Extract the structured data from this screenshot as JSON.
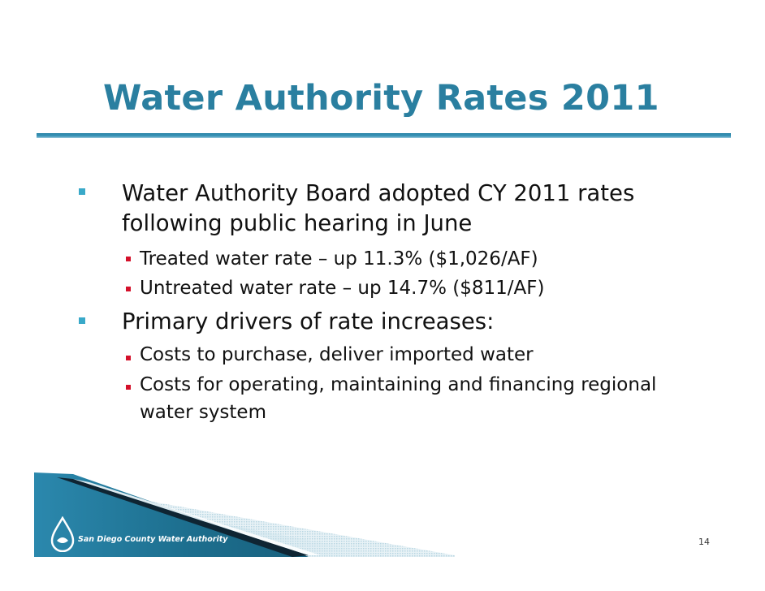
{
  "slide": {
    "title": "Water Authority Rates 2011",
    "bullets": [
      {
        "lines": [
          "Water Authority Board adopted CY 2011 rates",
          "following public hearing in June"
        ],
        "sub": [
          {
            "lines": [
              "Treated water rate – up 11.3%  ($1,026/AF)"
            ]
          },
          {
            "lines": [
              "Untreated water rate – up 14.7% ($811/AF)"
            ]
          }
        ]
      },
      {
        "lines": [
          "Primary drivers of rate increases:"
        ],
        "sub": [
          {
            "lines": [
              "Costs to purchase, deliver imported water"
            ]
          },
          {
            "lines": [
              "Costs for operating, maintaining and financing regional",
              "water system"
            ]
          }
        ]
      }
    ],
    "footer": {
      "logo_text": "San Diego County Water Authority",
      "page_number": "14"
    },
    "colors": {
      "title": "#2a7fa0",
      "rule": "#2d86a8",
      "primary_bullet": "#39a9c9",
      "secondary_bullet": "#d4102a",
      "footer_band": "#1f6f8c"
    }
  }
}
